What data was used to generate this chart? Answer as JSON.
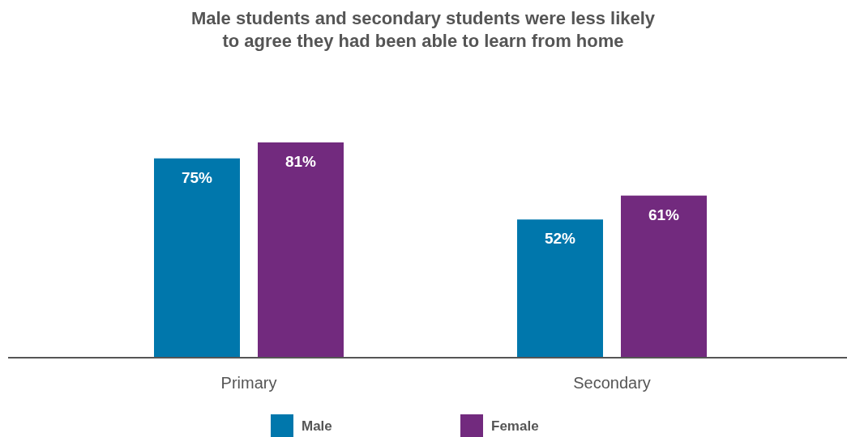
{
  "chart_data": {
    "type": "bar",
    "title": "Male students and secondary students were less likely\nto agree they had been able to learn from home",
    "categories": [
      "Primary",
      "Secondary"
    ],
    "series": [
      {
        "name": "Male",
        "color": "#0077ac",
        "values": [
          75,
          52
        ],
        "value_labels": [
          "75%",
          "52%"
        ]
      },
      {
        "name": "Female",
        "color": "#722a7e",
        "values": [
          81,
          61
        ],
        "value_labels": [
          "81%",
          "61%"
        ]
      }
    ],
    "legend": "bottom"
  }
}
